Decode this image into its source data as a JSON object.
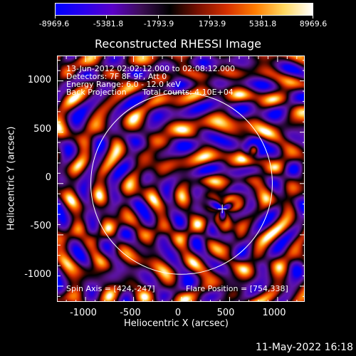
{
  "colorbar": {
    "colors": [
      "#0000ff",
      "#2a00ee",
      "#5a00c8",
      "#3c0e55",
      "#000000",
      "#7a1000",
      "#d63000",
      "#ff7d00",
      "#ffd860",
      "#ffffff"
    ],
    "tick_labels": [
      "-8969.6",
      "-5381.8",
      "-1793.9",
      "1793.9",
      "5381.8",
      "8969.6"
    ]
  },
  "title": "Reconstructed RHESSI Image",
  "info": {
    "time_range": "13-Jun-2012 02:02:12.000 to 02:08:12.000",
    "detectors": "Detectors: 7F 8F 9F, Att 0",
    "energy": "Energy Range: 6.0 - 12.0 keV",
    "method": "Back Projection",
    "counts": "Total counts: 4.10E+04",
    "spin_axis": "Spin Axis = [424,-247]",
    "flare_position": "Flare Position = [754,338]"
  },
  "axes": {
    "xlabel": "Heliocentric X (arcsec)",
    "ylabel": "Heliocentric Y (arcsec)",
    "x_ticks": [
      "-1000",
      "-500",
      "0",
      "500",
      "1000"
    ],
    "y_ticks": [
      "1000",
      "500",
      "0",
      "-500",
      "-1000"
    ],
    "xlim": [
      -1290,
      1290
    ],
    "ylim": [
      -1160,
      1240
    ]
  },
  "overlay": {
    "solar_limb_radius_arcsec": 945,
    "marker_position": [
      424,
      -247
    ],
    "marker_color": "#ffffff"
  },
  "footer_date": "11-May-2022 16:18"
}
